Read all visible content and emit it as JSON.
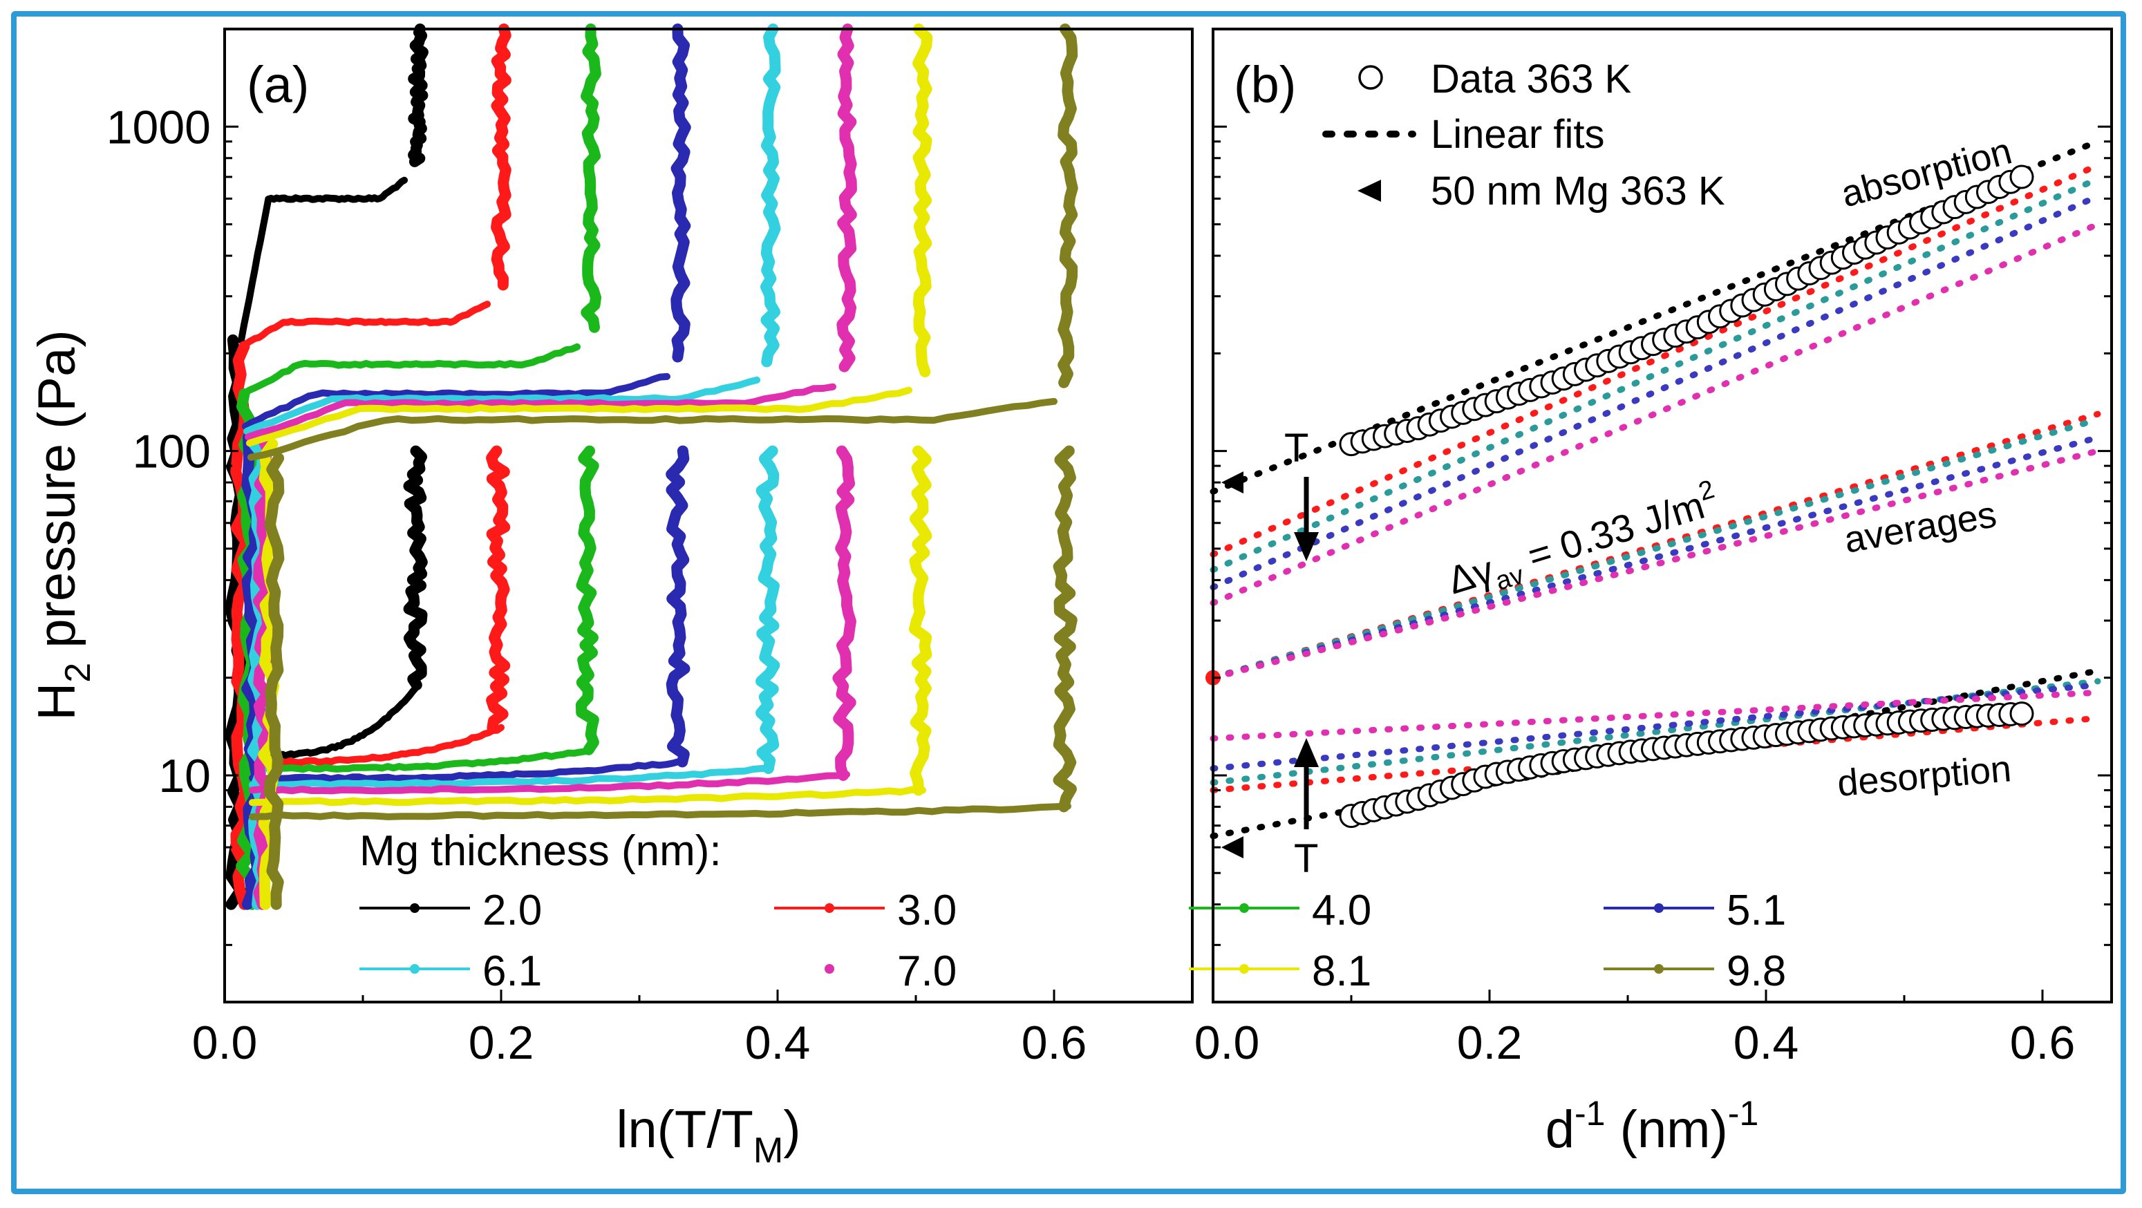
{
  "chart_data": [
    {
      "panel_label": "(a)",
      "type": "scatter",
      "xlabel_main": "ln(T/T",
      "xlabel_sub": "M",
      "xlabel_close": ")",
      "ylabel_main": "H",
      "ylabel_sub": "2",
      "ylabel_rest": " pressure (Pa)",
      "y_scale": "log",
      "xlim": [
        0,
        0.7
      ],
      "ylim": [
        2,
        2000
      ],
      "x_ticks": [
        {
          "v": 0.0,
          "label": "0.0"
        },
        {
          "v": 0.2,
          "label": "0.2"
        },
        {
          "v": 0.4,
          "label": "0.4"
        },
        {
          "v": 0.6,
          "label": "0.6"
        }
      ],
      "y_ticks": [
        {
          "v": 10,
          "label": "10"
        },
        {
          "v": 100,
          "label": "100"
        },
        {
          "v": 1000,
          "label": "1000"
        }
      ],
      "legend_title": "Mg thickness (nm):",
      "series": [
        {
          "name": "2.0",
          "color": "#000000",
          "edge": 0.15,
          "abs_plateau": 600,
          "abs_start": 220,
          "des_plateau": 19,
          "des_start": 11.5,
          "des_top": 100
        },
        {
          "name": "3.0",
          "color": "#ff1a1a",
          "edge": 0.21,
          "abs_plateau": 250,
          "abs_start": 210,
          "des_plateau": 14,
          "des_start": 11.0,
          "des_top": 100
        },
        {
          "name": "4.0",
          "color": "#1ab81a",
          "edge": 0.275,
          "abs_plateau": 185,
          "abs_start": 150,
          "des_plateau": 12,
          "des_start": 10.5,
          "des_top": 100
        },
        {
          "name": "5.1",
          "color": "#2a2ab0",
          "edge": 0.34,
          "abs_plateau": 150,
          "abs_start": 120,
          "des_plateau": 11,
          "des_start": 9.8,
          "des_top": 100
        },
        {
          "name": "6.1",
          "color": "#33d0e0",
          "edge": 0.405,
          "abs_plateau": 145,
          "abs_start": 115,
          "des_plateau": 10.5,
          "des_start": 9.4,
          "des_top": 100
        },
        {
          "name": "7.0",
          "color": "#e030b0",
          "edge": 0.46,
          "abs_plateau": 140,
          "abs_start": 110,
          "des_plateau": 10,
          "des_start": 9.0,
          "des_top": 100
        },
        {
          "name": "8.1",
          "color": "#e8e800",
          "edge": 0.515,
          "abs_plateau": 135,
          "abs_start": 105,
          "des_plateau": 9,
          "des_start": 8.3,
          "des_top": 100
        },
        {
          "name": "9.8",
          "color": "#808020",
          "edge": 0.62,
          "abs_plateau": 125,
          "abs_start": 95,
          "des_plateau": 8,
          "des_start": 7.5,
          "des_top": 100
        }
      ]
    },
    {
      "panel_label": "(b)",
      "type": "scatter",
      "xlabel_main": "d",
      "xlabel_sup": "-1",
      "xlabel_rest": "  (nm)",
      "xlabel_sup2": "-1",
      "y_scale": "log",
      "xlim": [
        0,
        0.65
      ],
      "ylim": [
        2,
        2000
      ],
      "x_ticks": [
        {
          "v": 0.0,
          "label": "0.0"
        },
        {
          "v": 0.2,
          "label": "0.2"
        },
        {
          "v": 0.4,
          "label": "0.4"
        },
        {
          "v": 0.6,
          "label": "0.6"
        }
      ],
      "legend": [
        {
          "symbol": "open-circle",
          "label": "Data 363 K"
        },
        {
          "symbol": "dotted-line",
          "label": "Linear fits"
        },
        {
          "symbol": "left-triangle",
          "label": "50 nm Mg 363 K"
        }
      ],
      "annotations": {
        "absorption": "absorption",
        "averages": "averages",
        "desorption": "desorption",
        "T_upper": "T",
        "T_lower": "T",
        "gamma_prefix": "Δγ",
        "gamma_sub": "av",
        "gamma_value": " = 0.33 J/m",
        "gamma_sup": "2"
      },
      "data_absorption": {
        "x": [
          0.1,
          0.15,
          0.2,
          0.25,
          0.3,
          0.35,
          0.4,
          0.45,
          0.5,
          0.55,
          0.585
        ],
        "y": [
          105,
          118,
          140,
          165,
          200,
          240,
          305,
          385,
          480,
          600,
          700
        ]
      },
      "data_desorption": {
        "x": [
          0.1,
          0.15,
          0.2,
          0.25,
          0.3,
          0.35,
          0.4,
          0.45,
          0.5,
          0.55,
          0.585
        ],
        "y": [
          7.5,
          8.5,
          10,
          11,
          11.8,
          12.5,
          13.2,
          14,
          14.6,
          15.2,
          15.5
        ]
      },
      "fits": [
        {
          "color": "#000000",
          "abs": [
            [
              0.0,
              75
            ],
            [
              0.64,
              900
            ]
          ],
          "avg": null,
          "des": [
            [
              0.0,
              6.5
            ],
            [
              0.64,
              21
            ]
          ]
        },
        {
          "color": "#ff1a1a",
          "abs": [
            [
              0.0,
              48
            ],
            [
              0.64,
              760
            ]
          ],
          "avg": [
            [
              0.0,
              20
            ],
            [
              0.64,
              130
            ]
          ],
          "des": [
            [
              0.0,
              9
            ],
            [
              0.64,
              15
            ]
          ]
        },
        {
          "color": "#2a9a9a",
          "abs": [
            [
              0.0,
              43
            ],
            [
              0.64,
              690
            ]
          ],
          "avg": [
            [
              0.0,
              20
            ],
            [
              0.64,
              125
            ]
          ],
          "des": [
            [
              0.0,
              9.5
            ],
            [
              0.64,
              19.5
            ]
          ]
        },
        {
          "color": "#3a3ac0",
          "abs": [
            [
              0.0,
              38
            ],
            [
              0.64,
              610
            ]
          ],
          "avg": [
            [
              0.0,
              20
            ],
            [
              0.64,
              110
            ]
          ],
          "des": [
            [
              0.0,
              10.5
            ],
            [
              0.64,
              19
            ]
          ]
        },
        {
          "color": "#e030b0",
          "abs": [
            [
              0.0,
              34
            ],
            [
              0.64,
              500
            ]
          ],
          "avg": [
            [
              0.0,
              20
            ],
            [
              0.64,
              100
            ]
          ],
          "des": [
            [
              0.0,
              13
            ],
            [
              0.64,
              18
            ]
          ]
        }
      ],
      "reference_points": [
        {
          "symbol": "left-triangle",
          "x": 0.012,
          "y": 80
        },
        {
          "symbol": "left-triangle",
          "x": 0.012,
          "y": 6
        },
        {
          "symbol": "red-dot",
          "x": 0.0,
          "y": 20
        }
      ]
    }
  ]
}
